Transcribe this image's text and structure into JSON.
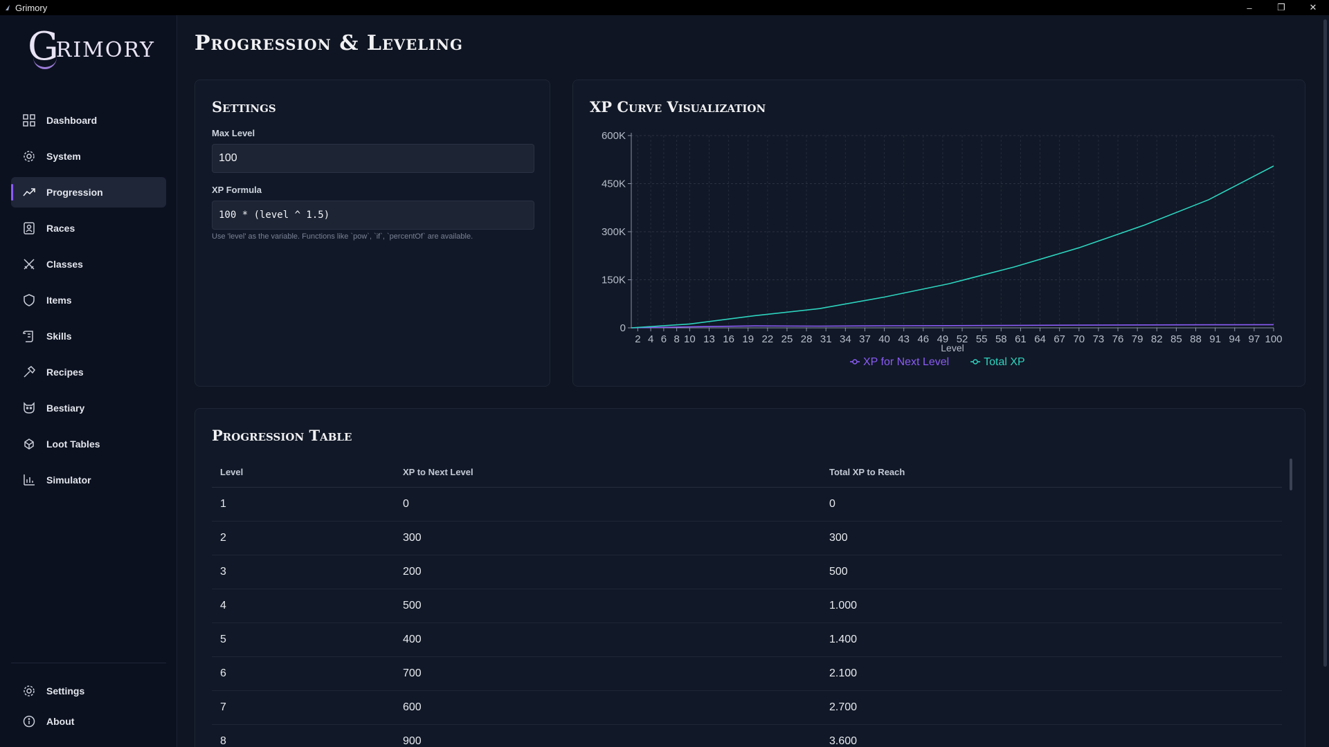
{
  "window": {
    "title": "Grimory",
    "min": "–",
    "restore": "❐",
    "close": "✕"
  },
  "logo": {
    "first": "G",
    "rest": "RIMORY"
  },
  "sidebar": {
    "items": [
      {
        "label": "Dashboard",
        "icon": "dashboard-icon",
        "active": false
      },
      {
        "label": "System",
        "icon": "gear-icon",
        "active": false
      },
      {
        "label": "Progression",
        "icon": "trend-icon",
        "active": true
      },
      {
        "label": "Races",
        "icon": "person-badge-icon",
        "active": false
      },
      {
        "label": "Classes",
        "icon": "crossed-swords-icon",
        "active": false
      },
      {
        "label": "Items",
        "icon": "shield-icon",
        "active": false
      },
      {
        "label": "Skills",
        "icon": "scroll-icon",
        "active": false
      },
      {
        "label": "Recipes",
        "icon": "hammer-icon",
        "active": false
      },
      {
        "label": "Bestiary",
        "icon": "beast-icon",
        "active": false
      },
      {
        "label": "Loot Tables",
        "icon": "loot-icon",
        "active": false
      },
      {
        "label": "Simulator",
        "icon": "bar-chart-icon",
        "active": false
      }
    ],
    "bottom": [
      {
        "label": "Settings",
        "icon": "gear-icon"
      },
      {
        "label": "About",
        "icon": "info-icon"
      }
    ]
  },
  "page": {
    "title": "Progression & Leveling"
  },
  "settings": {
    "title": "Settings",
    "max_level_label": "Max Level",
    "max_level_value": "100",
    "formula_label": "XP Formula",
    "formula_value": "100 * (level ^ 1.5)",
    "hint": "Use 'level' as the variable. Functions like `pow`, `if`, `percentOf` are available."
  },
  "chart": {
    "title": "XP Curve Visualization",
    "accent_colors": {
      "next": "#8b5cf6",
      "total": "#2dd4bf"
    }
  },
  "chart_data": {
    "type": "line",
    "xlabel": "Level",
    "ylabel": "",
    "ylim": [
      0,
      600000
    ],
    "yticks": [
      0,
      150000,
      300000,
      450000,
      600000
    ],
    "ytick_labels": [
      "0",
      "150K",
      "300K",
      "450K",
      "600K"
    ],
    "xtick_labels": [
      "2",
      "4",
      "6",
      "8",
      "10",
      "13",
      "16",
      "19",
      "22",
      "25",
      "28",
      "31",
      "34",
      "37",
      "40",
      "43",
      "46",
      "49",
      "52",
      "55",
      "58",
      "61",
      "64",
      "67",
      "70",
      "73",
      "76",
      "79",
      "82",
      "85",
      "88",
      "91",
      "94",
      "97",
      "100"
    ],
    "xlim": [
      1,
      100
    ],
    "grid": true,
    "legend_position": "bottom",
    "series": [
      {
        "name": "XP for Next Level",
        "x": [
          1,
          10,
          20,
          30,
          40,
          50,
          60,
          70,
          80,
          90,
          100
        ],
        "values": [
          0,
          3200,
          6000,
          5500,
          6500,
          7000,
          7800,
          8500,
          9000,
          9600,
          10000
        ]
      },
      {
        "name": "Total XP",
        "x": [
          1,
          10,
          20,
          30,
          40,
          50,
          60,
          70,
          80,
          90,
          100
        ],
        "values": [
          0,
          12000,
          38000,
          60000,
          96000,
          138000,
          190000,
          250000,
          320000,
          400000,
          505000
        ]
      }
    ]
  },
  "table": {
    "title": "Progression Table",
    "headers": [
      "Level",
      "XP to Next Level",
      "Total XP to Reach"
    ],
    "rows": [
      [
        "1",
        "0",
        "0"
      ],
      [
        "2",
        "300",
        "300"
      ],
      [
        "3",
        "200",
        "500"
      ],
      [
        "4",
        "500",
        "1.000"
      ],
      [
        "5",
        "400",
        "1.400"
      ],
      [
        "6",
        "700",
        "2.100"
      ],
      [
        "7",
        "600",
        "2.700"
      ],
      [
        "8",
        "900",
        "3.600"
      ]
    ]
  }
}
